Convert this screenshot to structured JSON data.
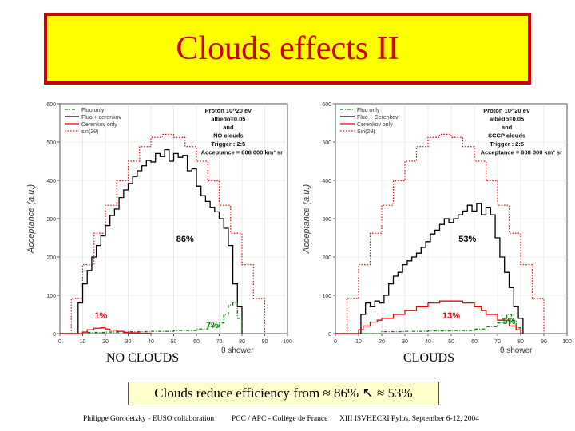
{
  "slide": {
    "title": "Clouds effects II",
    "caption_left": "NO CLOUDS",
    "caption_right": "CLOUDS",
    "summary": "Clouds reduce efficiency from ≈ 86% ↖ ≈ 53%",
    "footer": {
      "author": "Philippe Gorodetzky - EUSO collaboration",
      "affiliation": "PCC / APC - Collège de France",
      "event": "XIII ISVHECRI  Pylos, September 6-12, 2004"
    }
  },
  "colors": {
    "title_bg": "#ffff00",
    "title_border": "#cc0000",
    "title_text": "#cc0000",
    "fluo_only": "#008000",
    "fluo_cerenkov": "#000000",
    "cerenkov_only": "#ee0000",
    "sin": "#ee0000"
  },
  "chart_data": [
    {
      "type": "line",
      "id": "no-clouds",
      "ylabel": "Acceptance (a.u.)",
      "xlabel": "θ shower",
      "xlim": [
        0,
        100
      ],
      "ylim": [
        0,
        600
      ],
      "xticks": [
        "0",
        "10",
        "20",
        "30",
        "40",
        "50",
        "60",
        "70",
        "80",
        "90",
        "100"
      ],
      "yticks": [
        "0",
        "100",
        "200",
        "300",
        "400",
        "500",
        "600"
      ],
      "legend": [
        "Fluo only",
        "Fluo + cerenkov",
        "Cerenkov only",
        "sin(2θ)"
      ],
      "info": [
        "Proton 10^20 eV",
        "albedo=0.05",
        "and",
        "NO clouds",
        "Trigger : 2:5",
        "Acceptance = 608 000 km² sr"
      ],
      "annotations": [
        {
          "text": "86%",
          "x": 55,
          "y": 240,
          "color": "#000000"
        },
        {
          "text": "1%",
          "x": 18,
          "y": 40,
          "color": "#ee0000"
        },
        {
          "text": "7%",
          "x": 67,
          "y": 15,
          "color": "#008000"
        }
      ],
      "series": [
        {
          "name": "sin(2θ)",
          "style": "dotted",
          "x": [
            0,
            5,
            10,
            15,
            20,
            25,
            30,
            35,
            40,
            45,
            50,
            55,
            60,
            65,
            70,
            75,
            80,
            85,
            90
          ],
          "values": [
            0,
            92,
            180,
            262,
            335,
            399,
            450,
            488,
            512,
            520,
            512,
            488,
            450,
            399,
            335,
            262,
            180,
            92,
            0
          ]
        },
        {
          "name": "Fluo + cerenkov",
          "style": "solid",
          "x": [
            0,
            7,
            8,
            10,
            12,
            14,
            16,
            18,
            20,
            22,
            24,
            26,
            28,
            30,
            32,
            34,
            36,
            38,
            40,
            42,
            44,
            46,
            48,
            50,
            52,
            54,
            56,
            58,
            60,
            62,
            64,
            66,
            68,
            70,
            72,
            74,
            76,
            78,
            80
          ],
          "values": [
            0,
            0,
            80,
            130,
            165,
            200,
            230,
            255,
            282,
            308,
            325,
            355,
            375,
            392,
            410,
            425,
            438,
            452,
            448,
            470,
            462,
            480,
            450,
            470,
            460,
            465,
            425,
            430,
            385,
            360,
            345,
            330,
            318,
            300,
            275,
            230,
            130,
            70,
            0
          ]
        },
        {
          "name": "Fluo only",
          "style": "dashdot",
          "x": [
            0,
            10,
            20,
            30,
            40,
            50,
            60,
            65,
            70,
            72,
            74,
            76,
            78,
            80
          ],
          "values": [
            0,
            3,
            4,
            5,
            6,
            8,
            12,
            18,
            28,
            50,
            75,
            80,
            40,
            0
          ]
        },
        {
          "name": "Cerenkov only",
          "style": "solid",
          "x": [
            0,
            10,
            12,
            15,
            18,
            20,
            22,
            25,
            28,
            30,
            35,
            40
          ],
          "values": [
            0,
            4,
            10,
            14,
            15,
            12,
            9,
            6,
            3,
            2,
            1,
            0
          ]
        }
      ]
    },
    {
      "type": "line",
      "id": "clouds",
      "ylabel": "Acceptance (a.u.)",
      "xlabel": "θ shower",
      "xlim": [
        0,
        100
      ],
      "ylim": [
        0,
        600
      ],
      "xticks": [
        "0",
        "10",
        "20",
        "30",
        "40",
        "50",
        "60",
        "70",
        "80",
        "90",
        "100"
      ],
      "yticks": [
        "0",
        "100",
        "200",
        "300",
        "400",
        "500",
        "600"
      ],
      "legend": [
        "Fluo only",
        "Fluo + Cerenkov",
        "Cerenkov only",
        "Sin(2θ)"
      ],
      "info": [
        "Proton 10^20 eV",
        "albedo=0.05",
        "and",
        "SCCP clouds",
        "Trigger : 2:5",
        "Acceptance = 608 000 km² sr"
      ],
      "annotations": [
        {
          "text": "53%",
          "x": 57,
          "y": 240,
          "color": "#000000"
        },
        {
          "text": "13%",
          "x": 50,
          "y": 40,
          "color": "#ee0000"
        },
        {
          "text": "5%",
          "x": 75,
          "y": 25,
          "color": "#008000"
        }
      ],
      "series": [
        {
          "name": "Sin(2θ)",
          "style": "dotted",
          "x": [
            0,
            5,
            10,
            15,
            20,
            25,
            30,
            35,
            40,
            45,
            50,
            55,
            60,
            65,
            70,
            75,
            80,
            85,
            90
          ],
          "values": [
            0,
            92,
            180,
            262,
            335,
            399,
            450,
            488,
            512,
            520,
            512,
            488,
            450,
            399,
            335,
            262,
            180,
            92,
            0
          ]
        },
        {
          "name": "Fluo + Cerenkov",
          "style": "solid",
          "x": [
            0,
            10,
            11,
            13,
            15,
            17,
            19,
            21,
            23,
            25,
            27,
            29,
            31,
            33,
            35,
            37,
            39,
            41,
            43,
            45,
            47,
            49,
            51,
            53,
            55,
            57,
            59,
            61,
            63,
            65,
            67,
            69,
            71,
            73,
            75,
            77,
            79,
            81
          ],
          "values": [
            0,
            0,
            50,
            80,
            70,
            85,
            80,
            100,
            130,
            150,
            160,
            180,
            190,
            200,
            210,
            225,
            240,
            260,
            270,
            285,
            300,
            290,
            300,
            310,
            320,
            335,
            320,
            340,
            310,
            330,
            310,
            250,
            200,
            160,
            120,
            70,
            40,
            0
          ]
        },
        {
          "name": "Fluo only",
          "style": "dashdot",
          "x": [
            0,
            20,
            30,
            40,
            50,
            60,
            65,
            70,
            72,
            74,
            76,
            78,
            80
          ],
          "values": [
            0,
            5,
            6,
            7,
            8,
            12,
            18,
            28,
            40,
            50,
            35,
            15,
            0
          ]
        },
        {
          "name": "Cerenkov only",
          "style": "solid",
          "x": [
            0,
            10,
            12,
            15,
            18,
            20,
            25,
            30,
            35,
            40,
            45,
            50,
            55,
            60,
            63,
            65,
            70,
            75,
            78,
            80
          ],
          "values": [
            0,
            10,
            20,
            30,
            35,
            40,
            50,
            60,
            70,
            80,
            85,
            85,
            80,
            70,
            60,
            50,
            35,
            20,
            10,
            0
          ]
        }
      ]
    }
  ]
}
